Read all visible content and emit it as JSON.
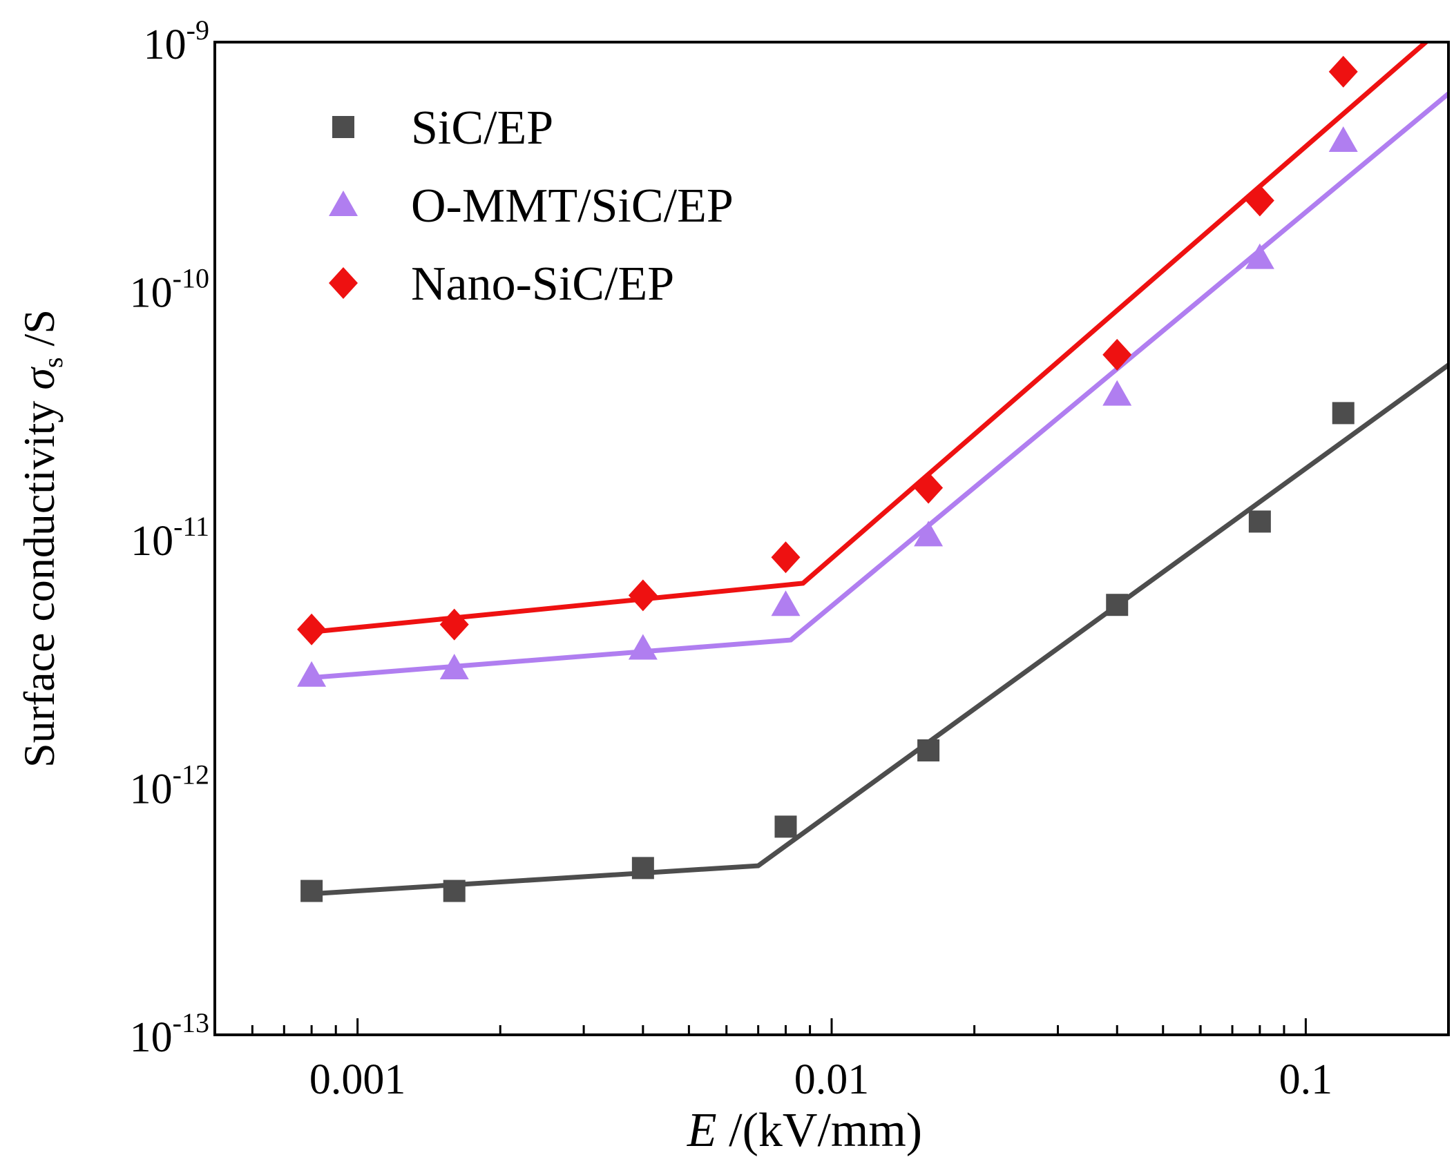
{
  "chart_data": {
    "type": "scatter",
    "title": "",
    "xlabel_italic": "E",
    "xlabel_rest": " /(kV/mm)",
    "ylabel_main": "Surface conductivity ",
    "ylabel_symbol": "σ",
    "ylabel_sub": "s",
    "ylabel_unit": " /S",
    "xscale": "log",
    "yscale": "log",
    "xlim": [
      0.0005,
      0.2
    ],
    "ylim": [
      1e-13,
      1e-09
    ],
    "x_ticks": [
      {
        "value": 0.001,
        "label": "0.001"
      },
      {
        "value": 0.01,
        "label": "0.01"
      },
      {
        "value": 0.1,
        "label": "0.1"
      }
    ],
    "y_ticks": [
      {
        "value": 1e-09,
        "base": "10",
        "exp": "-9"
      },
      {
        "value": 1e-10,
        "base": "10",
        "exp": "-10"
      },
      {
        "value": 1e-11,
        "base": "10",
        "exp": "-11"
      },
      {
        "value": 1e-12,
        "base": "10",
        "exp": "-12"
      },
      {
        "value": 1e-13,
        "base": "10",
        "exp": "-13"
      }
    ],
    "grid": false,
    "legend_position": "top-left",
    "x": [
      0.0008,
      0.0016,
      0.004,
      0.008,
      0.016,
      0.04,
      0.08,
      0.12
    ],
    "series": [
      {
        "name": "SiC/EP",
        "marker": "square",
        "color": "#4d4d4d",
        "values": [
          3.8e-13,
          3.8e-13,
          4.7e-13,
          6.9e-13,
          1.4e-12,
          5.4e-12,
          1.17e-11,
          3.2e-11
        ],
        "fit": [
          [
            0.0008,
            3.7e-13
          ],
          [
            0.007,
            4.8e-13
          ],
          [
            0.2,
            5e-11
          ]
        ]
      },
      {
        "name": "O-MMT/SiC/EP",
        "marker": "triangle",
        "color": "#b07ef0",
        "values": [
          2.8e-12,
          3e-12,
          3.6e-12,
          5.4e-12,
          1.03e-11,
          3.8e-11,
          1.35e-10,
          4e-10
        ],
        "fit": [
          [
            0.0008,
            2.75e-12
          ],
          [
            0.0082,
            3.9e-12
          ],
          [
            0.2,
            6.2e-10
          ]
        ]
      },
      {
        "name": "Nano-SiC/EP",
        "marker": "diamond",
        "color": "#ee1111",
        "values": [
          4.3e-12,
          4.5e-12,
          5.9e-12,
          8.4e-12,
          1.6e-11,
          5.5e-11,
          2.3e-10,
          7.6e-10
        ],
        "fit": [
          [
            0.0008,
            4.2e-12
          ],
          [
            0.0087,
            6.6e-12
          ],
          [
            0.2,
            1.2e-09
          ]
        ]
      }
    ]
  }
}
